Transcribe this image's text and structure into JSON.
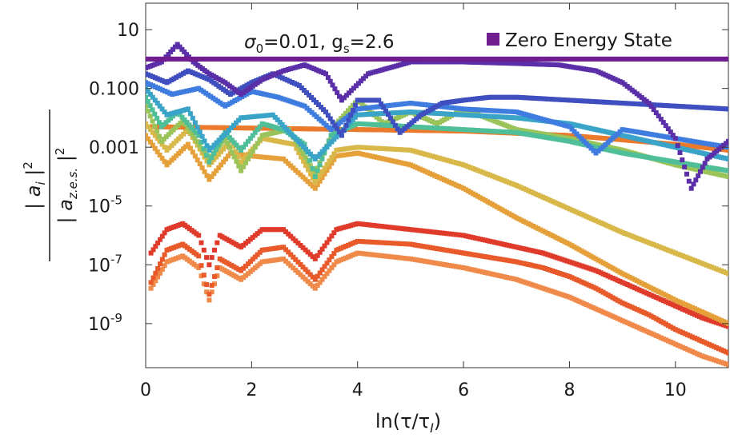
{
  "chart_data": {
    "type": "scatter",
    "title": "",
    "annotation": {
      "sigma": "σ",
      "sigma_sub": "0",
      "sigma_val": "=0.01, g",
      "gs_sub": "s",
      "gs_val": "=2.6"
    },
    "xlabel": {
      "pre": "ln(τ/τ",
      "sub": "I",
      "post": ")"
    },
    "ylabel": {
      "num_base": "| a",
      "num_sub": "i",
      "num_post": " |",
      "num_pow": "2",
      "den_base": "| a",
      "den_sub": "z.e.s.",
      "den_post": " |",
      "den_pow": "2"
    },
    "xlim": [
      0,
      11
    ],
    "ylim_log10": [
      -10.5,
      1.9
    ],
    "y_scale": "log",
    "x_ticks": [
      {
        "value": 0,
        "label": "0"
      },
      {
        "value": 2,
        "label": "2"
      },
      {
        "value": 4,
        "label": "4"
      },
      {
        "value": 6,
        "label": "6"
      },
      {
        "value": 8,
        "label": "8"
      },
      {
        "value": 10,
        "label": "10"
      }
    ],
    "y_ticks": [
      {
        "log": 1,
        "label": "10",
        "exp": ""
      },
      {
        "log": -1,
        "label": "0.100",
        "exp": ""
      },
      {
        "log": -3,
        "label": "0.001",
        "exp": ""
      },
      {
        "log": -5,
        "label": "10",
        "exp": "-5"
      },
      {
        "log": -7,
        "label": "10",
        "exp": "-7"
      },
      {
        "log": -9,
        "label": "10",
        "exp": "-9"
      }
    ],
    "legend": {
      "position": "top-right",
      "entries": [
        {
          "name": "Zero Energy State",
          "color": "#6f1d8f"
        }
      ]
    },
    "series": [
      {
        "name": "",
        "color": "#6f1d8f",
        "x": [
          0,
          2,
          4,
          6,
          8,
          11
        ],
        "log10y": [
          0,
          0,
          0,
          0,
          0,
          0
        ]
      },
      {
        "name": "",
        "color": "#5a2fa8",
        "x": [
          0,
          0.3,
          0.6,
          0.9,
          1.2,
          1.5,
          1.8,
          2.2,
          2.6,
          3.0,
          3.4,
          3.7,
          4.2,
          5,
          6,
          7,
          7.8,
          8.5,
          9,
          9.5,
          10,
          10.3,
          10.6,
          11
        ],
        "log10y": [
          -0.3,
          -0.1,
          0.5,
          -0.1,
          -0.5,
          -0.8,
          -1.2,
          -0.7,
          -0.4,
          -0.2,
          -0.5,
          -1.4,
          -0.5,
          -0.1,
          -0.1,
          -0.15,
          -0.2,
          -0.4,
          -0.8,
          -1.5,
          -2.7,
          -4.4,
          -3.4,
          -2.8
        ]
      },
      {
        "name": "",
        "color": "#3f4fc0",
        "x": [
          0,
          0.4,
          0.8,
          1.2,
          1.6,
          2.0,
          2.4,
          2.9,
          3.4,
          3.7,
          4.0,
          4.4,
          4.8,
          5.2,
          5.6,
          6,
          6.5,
          7,
          8,
          11
        ],
        "log10y": [
          -0.5,
          -0.8,
          -0.4,
          -0.7,
          -1.2,
          -0.8,
          -0.5,
          -0.9,
          -1.8,
          -2.6,
          -1.4,
          -1.4,
          -2.5,
          -1.9,
          -1.5,
          -1.4,
          -1.3,
          -1.3,
          -1.4,
          -1.7
        ]
      },
      {
        "name": "",
        "color": "#3f7ce0",
        "x": [
          0,
          0.5,
          1.0,
          1.5,
          2.0,
          2.5,
          3.0,
          3.5,
          4,
          5,
          6,
          7,
          8,
          8.5,
          9,
          10,
          11
        ],
        "log10y": [
          -0.8,
          -1.2,
          -1.0,
          -1.6,
          -1.1,
          -1.3,
          -1.6,
          -2.4,
          -1.7,
          -1.5,
          -1.7,
          -1.8,
          -2.3,
          -3.2,
          -2.4,
          -2.7,
          -3.0
        ]
      },
      {
        "name": "",
        "color": "#3aa3c8",
        "x": [
          0,
          0.4,
          0.8,
          1.2,
          1.8,
          2.4,
          3.2,
          4,
          5,
          6,
          7,
          8,
          9,
          10,
          11
        ],
        "log10y": [
          -1.0,
          -1.9,
          -1.7,
          -3.1,
          -2.0,
          -1.9,
          -3.4,
          -1.9,
          -1.8,
          -1.9,
          -2.0,
          -2.2,
          -2.6,
          -3.0,
          -3.4
        ]
      },
      {
        "name": "",
        "color": "#4fbf99",
        "x": [
          0,
          0.3,
          0.6,
          1.0,
          1.2,
          1.5,
          1.8,
          2.2,
          2.6,
          3.0,
          3.2,
          3.5,
          4,
          5,
          6,
          7,
          8,
          9,
          10,
          11
        ],
        "log10y": [
          -1.3,
          -2.3,
          -1.8,
          -2.6,
          -3.5,
          -2.5,
          -3.1,
          -2.2,
          -2.4,
          -2.9,
          -4.0,
          -2.6,
          -2.2,
          -2.3,
          -2.4,
          -2.5,
          -2.8,
          -3.2,
          -3.5,
          -3.8
        ]
      },
      {
        "name": "",
        "color": "#9ac45a",
        "x": [
          0,
          0.3,
          0.7,
          1.2,
          1.5,
          1.8,
          2.2,
          2.7,
          3.2,
          3.6,
          4,
          4.5,
          5,
          5.5,
          6,
          7,
          8,
          9,
          10,
          11
        ],
        "log10y": [
          -1.6,
          -2.8,
          -2.1,
          -3.4,
          -2.7,
          -3.8,
          -2.6,
          -2.4,
          -3.9,
          -2.2,
          -1.4,
          -2.2,
          -1.8,
          -2.2,
          -1.7,
          -2.4,
          -2.7,
          -3.1,
          -3.6,
          -4.0
        ]
      },
      {
        "name": "",
        "color": "#d9b84a",
        "x": [
          0,
          0.4,
          0.8,
          1.2,
          1.6,
          1.8,
          2.2,
          2.8,
          3.2,
          3.6,
          4,
          5,
          6,
          7,
          8,
          9,
          10,
          11
        ],
        "log10y": [
          -2.2,
          -3.1,
          -2.4,
          -3.6,
          -2.8,
          -3.5,
          -2.7,
          -2.9,
          -4.2,
          -3.1,
          -3.0,
          -3.1,
          -3.6,
          -4.3,
          -5.1,
          -5.9,
          -6.6,
          -7.3
        ]
      },
      {
        "name": "",
        "color": "#e6a03a",
        "x": [
          0,
          0.4,
          0.8,
          1.2,
          1.6,
          2.0,
          2.6,
          3.2,
          3.6,
          4,
          5,
          6,
          7,
          8,
          9,
          10,
          11
        ],
        "log10y": [
          -2.6,
          -3.6,
          -2.9,
          -4.1,
          -3.2,
          -3.3,
          -3.4,
          -4.4,
          -3.3,
          -3.2,
          -3.6,
          -4.4,
          -5.4,
          -6.3,
          -7.3,
          -8.2,
          -9.0
        ]
      },
      {
        "name": "",
        "color": "#ec7a2c",
        "x": [
          0,
          2,
          4,
          6,
          8,
          9,
          10,
          11
        ],
        "log10y": [
          -2.3,
          -2.35,
          -2.4,
          -2.45,
          -2.6,
          -2.75,
          -2.9,
          -3.1
        ]
      },
      {
        "name": "",
        "color": "#e85a2a",
        "x": [
          0.1,
          0.4,
          0.7,
          1.0,
          1.2,
          1.4,
          1.8,
          2.2,
          2.6,
          3.2,
          3.6,
          4,
          5,
          6,
          7,
          7.5,
          8,
          8.5,
          9,
          9.5,
          10,
          10.5,
          11
        ],
        "log10y": [
          -7.6,
          -6.5,
          -6.3,
          -6.7,
          -8.0,
          -6.8,
          -7.2,
          -6.5,
          -6.4,
          -7.5,
          -6.5,
          -6.2,
          -6.3,
          -6.6,
          -6.9,
          -7.1,
          -7.4,
          -7.8,
          -8.3,
          -8.7,
          -9.2,
          -9.6,
          -10.0
        ]
      },
      {
        "name": "",
        "color": "#e03a2a",
        "x": [
          0.1,
          0.4,
          0.7,
          1.0,
          1.2,
          1.4,
          1.8,
          2.2,
          2.6,
          3.2,
          3.6,
          4,
          5,
          6,
          7,
          7.5,
          8,
          8.5,
          9,
          9.5,
          10,
          10.5,
          11
        ],
        "log10y": [
          -6.6,
          -5.8,
          -5.6,
          -6.0,
          -7.0,
          -6.0,
          -6.4,
          -5.8,
          -5.8,
          -6.8,
          -5.8,
          -5.6,
          -5.8,
          -6.0,
          -6.4,
          -6.6,
          -6.9,
          -7.2,
          -7.6,
          -8.0,
          -8.4,
          -8.8,
          -9.1
        ]
      },
      {
        "name": "",
        "color": "#f08a4a",
        "x": [
          0.1,
          0.4,
          0.7,
          1.0,
          1.2,
          1.4,
          1.8,
          2.2,
          2.6,
          3.2,
          3.6,
          4,
          5,
          6,
          7,
          7.5,
          8,
          8.5,
          9,
          9.5,
          10,
          10.5,
          11
        ],
        "log10y": [
          -7.8,
          -6.9,
          -6.7,
          -7.1,
          -8.2,
          -7.1,
          -7.5,
          -6.9,
          -6.8,
          -7.8,
          -6.9,
          -6.6,
          -6.8,
          -7.1,
          -7.5,
          -7.8,
          -8.1,
          -8.5,
          -8.9,
          -9.3,
          -9.7,
          -10.1,
          -10.4
        ]
      }
    ]
  }
}
